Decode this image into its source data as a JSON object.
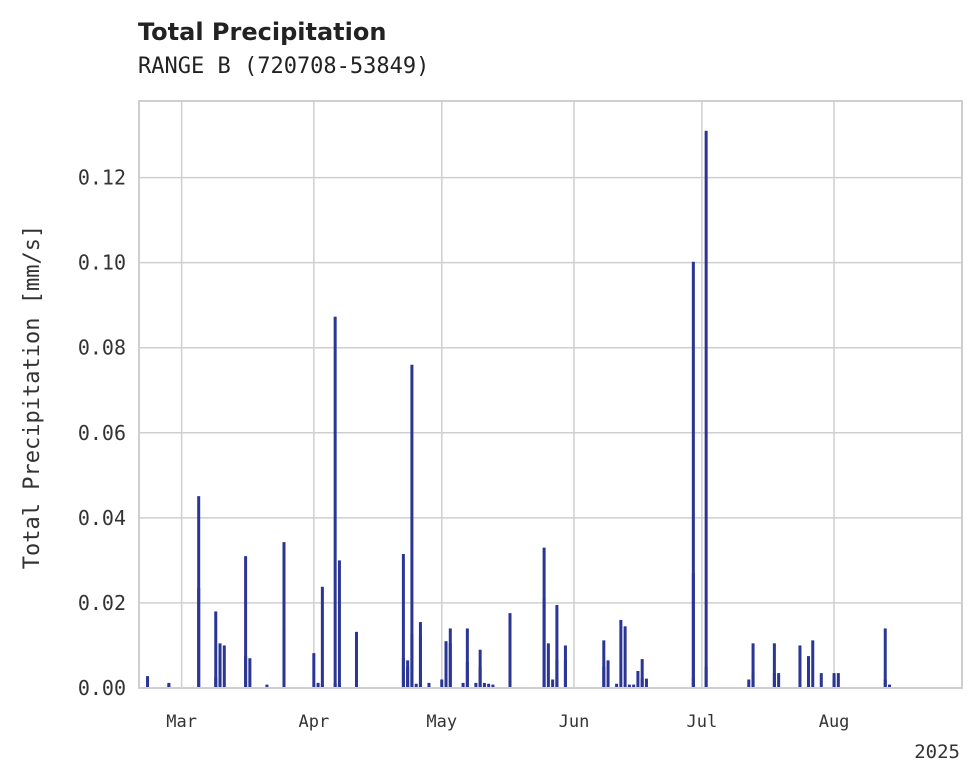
{
  "chart_data": {
    "type": "bar",
    "title": "Total Precipitation",
    "subtitle": "RANGE B (720708-53849)",
    "xlabel": "",
    "ylabel": "Total Precipitation [mm/s]",
    "ylim": [
      0,
      0.138
    ],
    "xlim": [
      "2025-02-19",
      "2025-08-31"
    ],
    "y_ticks": [
      "0.00",
      "0.02",
      "0.04",
      "0.06",
      "0.08",
      "0.10",
      "0.12"
    ],
    "x_ticks": [
      {
        "date": "2025-03-01",
        "label": "Mar"
      },
      {
        "date": "2025-04-01",
        "label": "Apr"
      },
      {
        "date": "2025-05-01",
        "label": "May"
      },
      {
        "date": "2025-06-01",
        "label": "Jun"
      },
      {
        "date": "2025-07-01",
        "label": "Jul"
      },
      {
        "date": "2025-08-01",
        "label": "Aug"
      }
    ],
    "x_year_label": "2025",
    "grid": true,
    "bar_color": "#2a3594",
    "series": [
      {
        "points": [
          [
            "2025-02-21",
            0.0028
          ],
          [
            "2025-02-26",
            0.0008
          ],
          [
            "2025-02-26",
            0.0012
          ],
          [
            "2025-03-05",
            0.0235
          ],
          [
            "2025-03-05",
            0.0451
          ],
          [
            "2025-03-09",
            0.0025
          ],
          [
            "2025-03-09",
            0.018
          ],
          [
            "2025-03-10",
            0.007
          ],
          [
            "2025-03-10",
            0.0105
          ],
          [
            "2025-03-11",
            0.01
          ],
          [
            "2025-03-16",
            0.0075
          ],
          [
            "2025-03-16",
            0.031
          ],
          [
            "2025-03-17",
            0.007
          ],
          [
            "2025-03-21",
            0.0008
          ],
          [
            "2025-03-25",
            0.0343
          ],
          [
            "2025-03-25",
            0.014
          ],
          [
            "2025-04-01",
            0.0082
          ],
          [
            "2025-04-02",
            0.0012
          ],
          [
            "2025-04-03",
            0.001
          ],
          [
            "2025-04-03",
            0.0238
          ],
          [
            "2025-04-06",
            0.0012
          ],
          [
            "2025-04-06",
            0.0873
          ],
          [
            "2025-04-07",
            0.03
          ],
          [
            "2025-04-07",
            0.0008
          ],
          [
            "2025-04-11",
            0.0132
          ],
          [
            "2025-04-22",
            0.0315
          ],
          [
            "2025-04-22",
            0.007
          ],
          [
            "2025-04-23",
            0.005
          ],
          [
            "2025-04-23",
            0.0065
          ],
          [
            "2025-04-24",
            0.076
          ],
          [
            "2025-04-24",
            0.0128
          ],
          [
            "2025-04-25",
            0.001
          ],
          [
            "2025-04-26",
            0.0155
          ],
          [
            "2025-04-26",
            0.0125
          ],
          [
            "2025-04-28",
            0.0012
          ],
          [
            "2025-05-01",
            0.002
          ],
          [
            "2025-05-02",
            0.011
          ],
          [
            "2025-05-03",
            0.014
          ],
          [
            "2025-05-03",
            0.0105
          ],
          [
            "2025-05-06",
            0.0012
          ],
          [
            "2025-05-07",
            0.014
          ],
          [
            "2025-05-07",
            0.006
          ],
          [
            "2025-05-09",
            0.0012
          ],
          [
            "2025-05-10",
            0.009
          ],
          [
            "2025-05-10",
            0.005
          ],
          [
            "2025-05-11",
            0.0012
          ],
          [
            "2025-05-12",
            0.001
          ],
          [
            "2025-05-13",
            0.0008
          ],
          [
            "2025-05-17",
            0.002
          ],
          [
            "2025-05-17",
            0.0176
          ],
          [
            "2025-05-25",
            0.033
          ],
          [
            "2025-05-25",
            0.021
          ],
          [
            "2025-05-26",
            0.0105
          ],
          [
            "2025-05-27",
            0.002
          ],
          [
            "2025-05-28",
            0.0195
          ],
          [
            "2025-05-28",
            0.0065
          ],
          [
            "2025-05-30",
            0.01
          ],
          [
            "2025-05-30",
            0.0065
          ],
          [
            "2025-06-08",
            0.0112
          ],
          [
            "2025-06-08",
            0.005
          ],
          [
            "2025-06-09",
            0.0065
          ],
          [
            "2025-06-11",
            0.001
          ],
          [
            "2025-06-12",
            0.016
          ],
          [
            "2025-06-13",
            0.0145
          ],
          [
            "2025-06-14",
            0.0008
          ],
          [
            "2025-06-15",
            0.0008
          ],
          [
            "2025-06-16",
            0.004
          ],
          [
            "2025-06-17",
            0.0068
          ],
          [
            "2025-06-17",
            0.0022
          ],
          [
            "2025-06-18",
            0.0022
          ],
          [
            "2025-06-29",
            0.0025
          ],
          [
            "2025-06-29",
            0.027
          ],
          [
            "2025-06-29",
            0.1002
          ],
          [
            "2025-07-02",
            0.131
          ],
          [
            "2025-07-02",
            0.005
          ],
          [
            "2025-07-12",
            0.002
          ],
          [
            "2025-07-13",
            0.0035
          ],
          [
            "2025-07-13",
            0.0105
          ],
          [
            "2025-07-18",
            0.0105
          ],
          [
            "2025-07-18",
            0.0035
          ],
          [
            "2025-07-19",
            0.0035
          ],
          [
            "2025-07-24",
            0.01
          ],
          [
            "2025-07-26",
            0.0075
          ],
          [
            "2025-07-27",
            0.0112
          ],
          [
            "2025-07-29",
            0.0035
          ],
          [
            "2025-08-01",
            0.002
          ],
          [
            "2025-08-01",
            0.0035
          ],
          [
            "2025-08-02",
            0.0035
          ],
          [
            "2025-08-13",
            0.002
          ],
          [
            "2025-08-13",
            0.014
          ],
          [
            "2025-08-14",
            0.0008
          ]
        ]
      }
    ]
  }
}
